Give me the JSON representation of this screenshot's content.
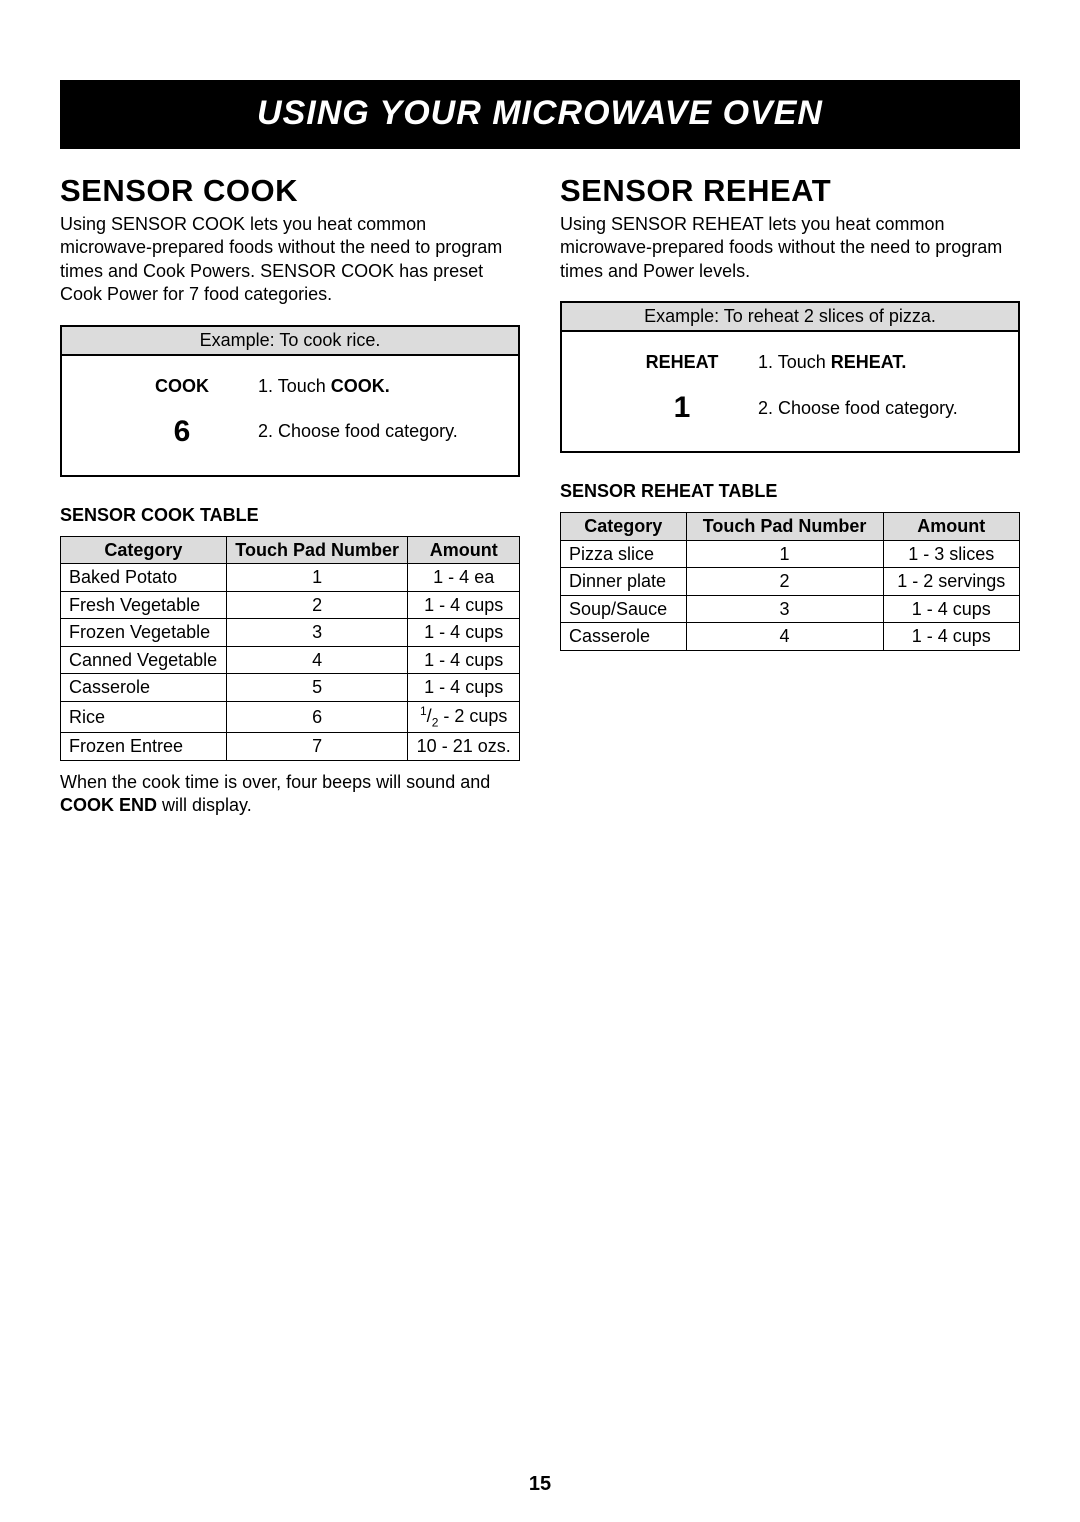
{
  "banner": "USING YOUR MICROWAVE OVEN",
  "pageNumber": "15",
  "left": {
    "title": "SENSOR COOK",
    "intro": "Using SENSOR COOK lets you heat common microwave-prepared foods without the need to program times and Cook Powers. SENSOR COOK has preset Cook Power for 7 food categories.",
    "example": {
      "header": "Example: To cook rice.",
      "rows": [
        {
          "label": "COOK",
          "labelClass": "",
          "prefix": "1. Touch ",
          "strong": "COOK.",
          "suffix": ""
        },
        {
          "label": "6",
          "labelClass": "big",
          "prefix": "2. Choose food category.",
          "strong": "",
          "suffix": ""
        }
      ]
    },
    "tableTitle": "SENSOR COOK TABLE",
    "table": {
      "headers": [
        "Category",
        "Touch Pad Number",
        "Amount"
      ],
      "rows": [
        [
          "Baked Potato",
          "1",
          "1 - 4 ea"
        ],
        [
          "Fresh Vegetable",
          "2",
          "1 - 4 cups"
        ],
        [
          "Frozen Vegetable",
          "3",
          "1 - 4 cups"
        ],
        [
          "Canned Vegetable",
          "4",
          "1 - 4 cups"
        ],
        [
          "Casserole",
          "5",
          "1 - 4 cups"
        ],
        [
          "Rice",
          "6",
          "½ - 2 cups"
        ],
        [
          "Frozen Entree",
          "7",
          "10 - 21 ozs."
        ]
      ],
      "riceAmount": {
        "num": "1",
        "den": "2",
        "suffix": " - 2 cups"
      }
    },
    "postNote": {
      "prefix": "When the cook time is over, four beeps will sound and ",
      "strong": "COOK END",
      "suffix": " will display."
    }
  },
  "right": {
    "title": "SENSOR REHEAT",
    "intro": "Using SENSOR REHEAT lets you heat common microwave-prepared foods without the need to program times and Power levels.",
    "example": {
      "header": "Example: To reheat 2 slices of pizza.",
      "rows": [
        {
          "label": "REHEAT",
          "labelClass": "",
          "prefix": "1. Touch ",
          "strong": "REHEAT.",
          "suffix": ""
        },
        {
          "label": "1",
          "labelClass": "big",
          "prefix": "2. Choose food category.",
          "strong": "",
          "suffix": ""
        }
      ]
    },
    "tableTitle": "SENSOR REHEAT TABLE",
    "table": {
      "headers": [
        "Category",
        "Touch Pad Number",
        "Amount"
      ],
      "rows": [
        [
          "Pizza slice",
          "1",
          "1 - 3 slices"
        ],
        [
          "Dinner plate",
          "2",
          "1 - 2 servings"
        ],
        [
          "Soup/Sauce",
          "3",
          "1 - 4 cups"
        ],
        [
          "Casserole",
          "4",
          "1 - 4 cups"
        ]
      ]
    }
  }
}
